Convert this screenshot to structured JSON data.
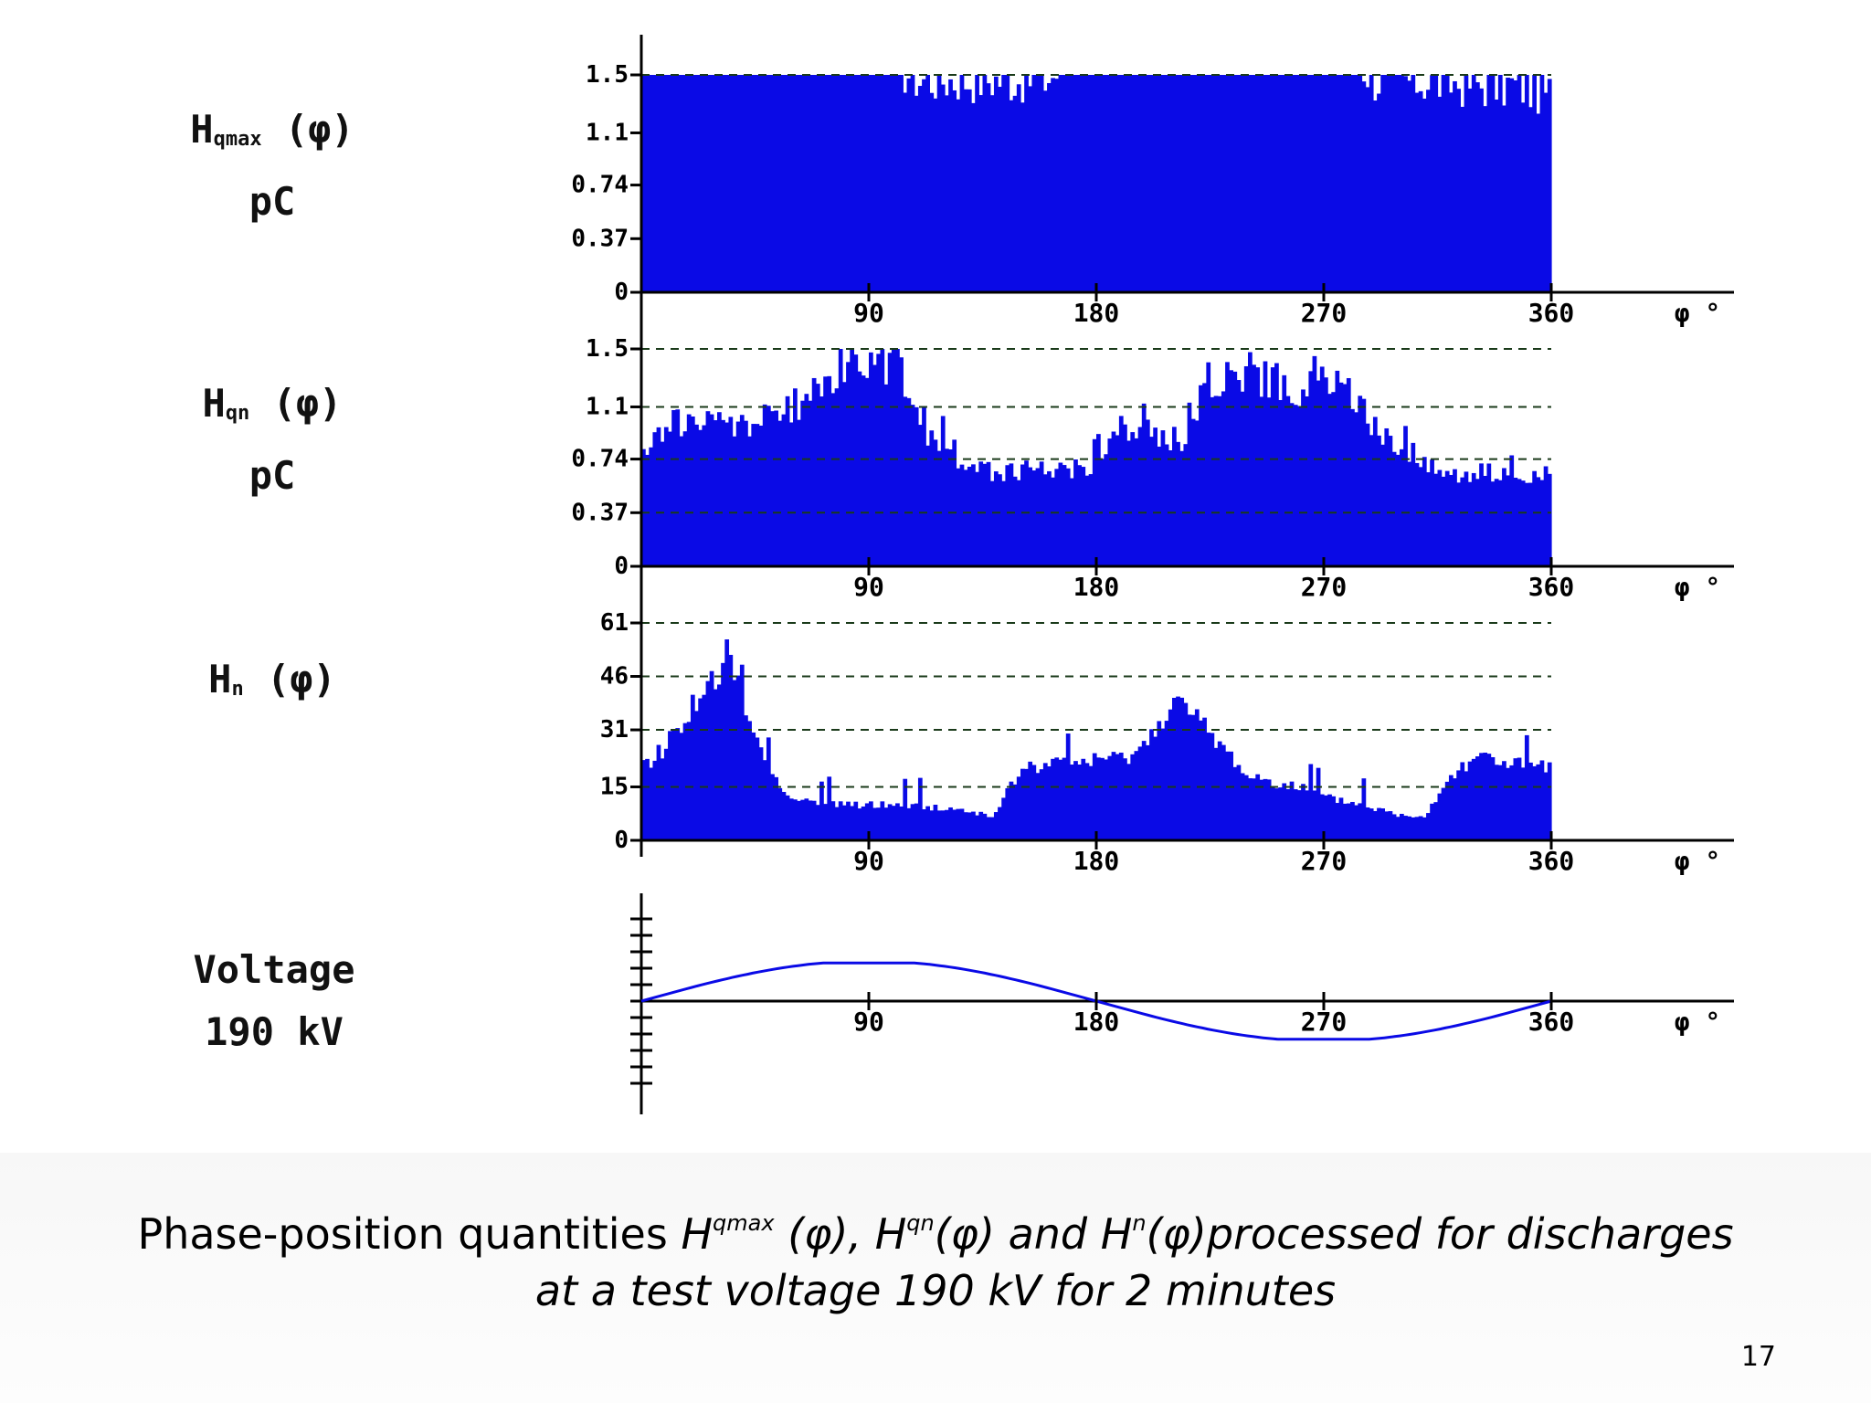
{
  "labels": {
    "row1": {
      "main": "H",
      "sub": "qmax",
      "arg": "(φ)",
      "unit": "pC"
    },
    "row2": {
      "main": "H",
      "sub": "qn",
      "arg": "(φ)",
      "unit": "pC"
    },
    "row3": {
      "main": "H",
      "sub": "n",
      "arg": "(φ)"
    },
    "row4": {
      "line1": "Voltage",
      "line2": "190 kV"
    }
  },
  "caption": {
    "prefix": "Phase-position quantities ",
    "h1": "H",
    "h1_sup": "qmax",
    "h1_arg": " (φ), ",
    "h2": "H",
    "h2_sup": "qn",
    "h2_arg": "(φ) and ",
    "h3": "H",
    "h3_sup": "n",
    "h3_arg": "(φ)processed for discharges",
    "line2": "at a test voltage 190 kV for 2 minutes"
  },
  "page_number": "17",
  "colors": {
    "fill": "#0a0ae6",
    "axis": "#000000",
    "gridline": "#1a3a1a"
  },
  "chart_data": [
    {
      "type": "bar",
      "name": "Hqmax",
      "x_range": [
        0,
        360
      ],
      "x_ticks": [
        "90",
        "180",
        "270",
        "360"
      ],
      "x_unit": "φ °",
      "y_ticks": [
        "0",
        "0.37",
        "0.74",
        "1.1",
        "1.5"
      ],
      "y_tick_values": [
        0,
        0.37,
        0.74,
        1.1,
        1.5
      ],
      "ylim": [
        0,
        1.5
      ],
      "grid": "dashed at 1.5",
      "profile": {
        "x": [
          0,
          100,
          110,
          160,
          170,
          285,
          290,
          350,
          360
        ],
        "y": [
          1.5,
          1.5,
          1.4,
          1.4,
          1.5,
          1.5,
          1.4,
          1.35,
          1.3
        ]
      }
    },
    {
      "type": "bar",
      "name": "Hqn",
      "x_range": [
        0,
        360
      ],
      "x_ticks": [
        "90",
        "180",
        "270",
        "360"
      ],
      "x_unit": "φ °",
      "y_ticks": [
        "0",
        "0.37",
        "0.74",
        "1.1",
        "1.5"
      ],
      "y_tick_values": [
        0,
        0.37,
        0.74,
        1.1,
        1.5
      ],
      "ylim": [
        0,
        1.5
      ],
      "grid": "dashed at each tick",
      "profile": {
        "x": [
          0,
          10,
          40,
          55,
          70,
          80,
          90,
          105,
          115,
          135,
          170,
          180,
          190,
          205,
          215,
          225,
          240,
          260,
          270,
          280,
          290,
          300,
          310,
          320,
          340,
          360
        ],
        "y": [
          0.72,
          1.0,
          0.98,
          1.05,
          1.2,
          1.4,
          1.45,
          1.3,
          0.85,
          0.65,
          0.68,
          0.7,
          0.95,
          0.9,
          0.88,
          1.3,
          1.35,
          1.2,
          1.3,
          1.2,
          0.95,
          0.85,
          0.7,
          0.65,
          0.64,
          0.62
        ]
      }
    },
    {
      "type": "bar",
      "name": "Hn",
      "x_range": [
        0,
        360
      ],
      "x_ticks": [
        "90",
        "180",
        "270",
        "360"
      ],
      "x_unit": "φ °",
      "y_ticks": [
        "0",
        "15",
        "31",
        "46",
        "61"
      ],
      "y_tick_values": [
        0,
        15,
        31,
        46,
        61
      ],
      "ylim": [
        0,
        61
      ],
      "grid": "dashed at each tick",
      "profile": {
        "x": [
          0,
          10,
          20,
          30,
          35,
          45,
          55,
          70,
          100,
          120,
          140,
          150,
          170,
          190,
          200,
          210,
          225,
          240,
          260,
          270,
          285,
          300,
          310,
          320,
          330,
          340,
          360
        ],
        "y": [
          20,
          27,
          38,
          45,
          48,
          30,
          14,
          10,
          10,
          9,
          7,
          20,
          22,
          23,
          27,
          40,
          30,
          18,
          15,
          12,
          10,
          7,
          7,
          18,
          24,
          22,
          20
        ]
      }
    },
    {
      "type": "line",
      "name": "Voltage",
      "x_range": [
        0,
        360
      ],
      "x_ticks": [
        "90",
        "180",
        "270",
        "360"
      ],
      "x_unit": "φ °",
      "waveform": "sine",
      "amplitude_relative": 1,
      "clipped_at_relative": 0.95
    }
  ]
}
